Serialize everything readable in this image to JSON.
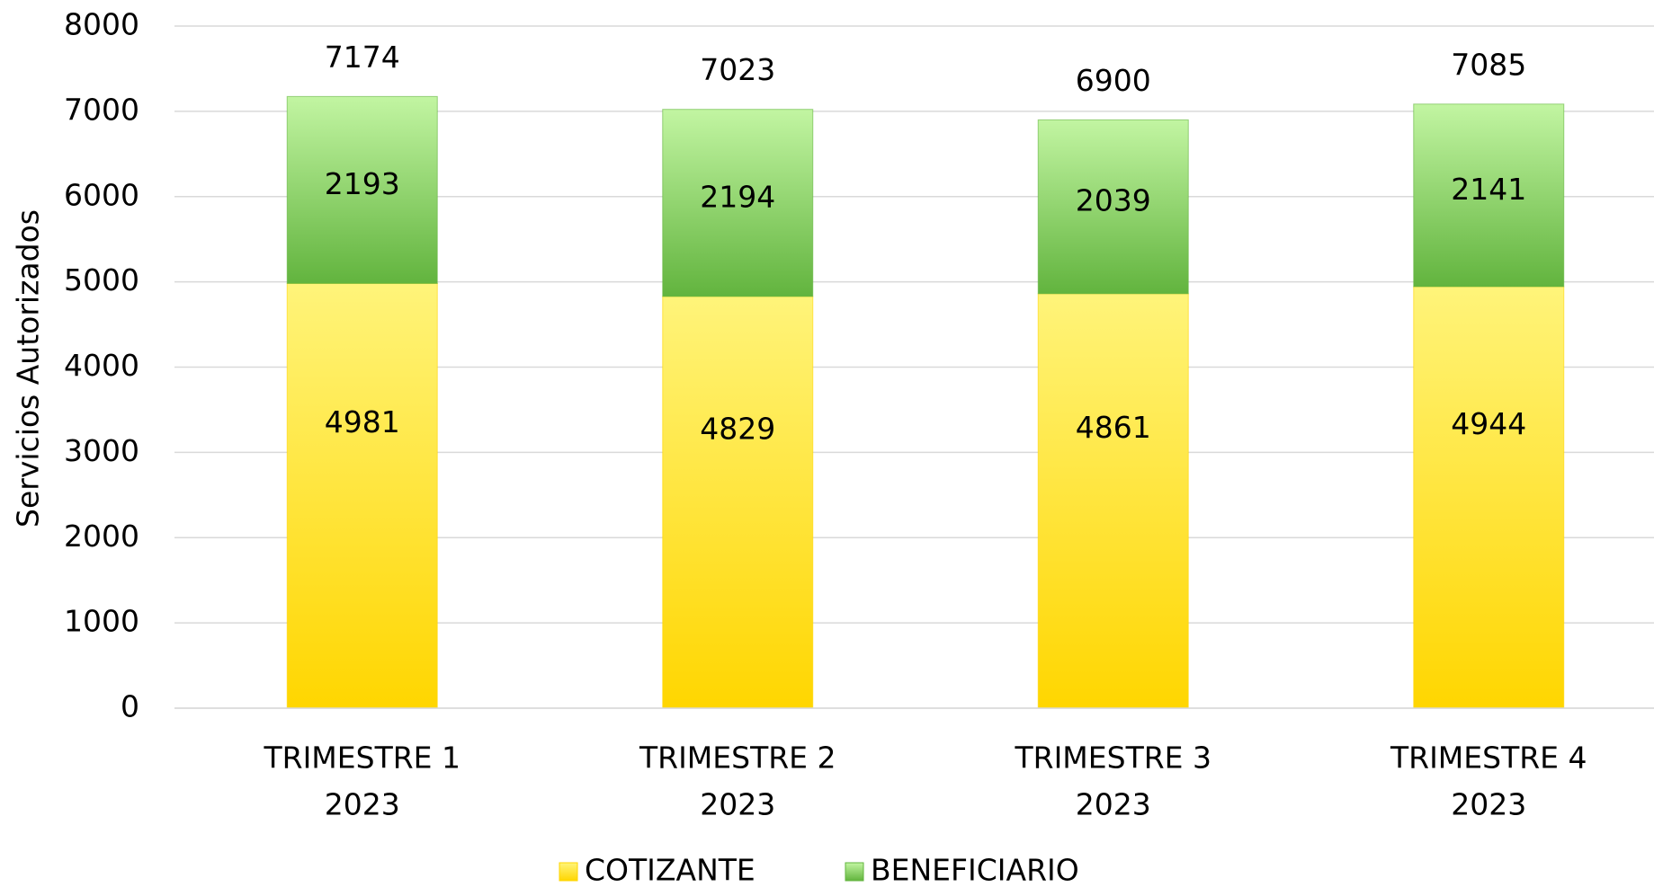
{
  "chart_data": {
    "type": "stacked_bar",
    "y_label": "Servicios Autorizados",
    "categories": [
      [
        "TRIMESTRE 1",
        "2023"
      ],
      [
        "TRIMESTRE 2",
        "2023"
      ],
      [
        "TRIMESTRE 3",
        "2023"
      ],
      [
        "TRIMESTRE 4",
        "2023"
      ]
    ],
    "series": [
      {
        "name": "COTIZANTE",
        "color": "#ffd600",
        "values": [
          4981,
          4829,
          4861,
          4944
        ]
      },
      {
        "name": "BENEFICIARIO",
        "color": "#62b43e",
        "values": [
          2193,
          2194,
          2039,
          2141
        ]
      }
    ],
    "totals": [
      7174,
      7023,
      6900,
      7085
    ],
    "ylim": [
      0,
      8000
    ],
    "yticks": [
      0,
      1000,
      2000,
      3000,
      4000,
      5000,
      6000,
      7000,
      8000
    ],
    "grid": true,
    "legend": "bottom"
  }
}
